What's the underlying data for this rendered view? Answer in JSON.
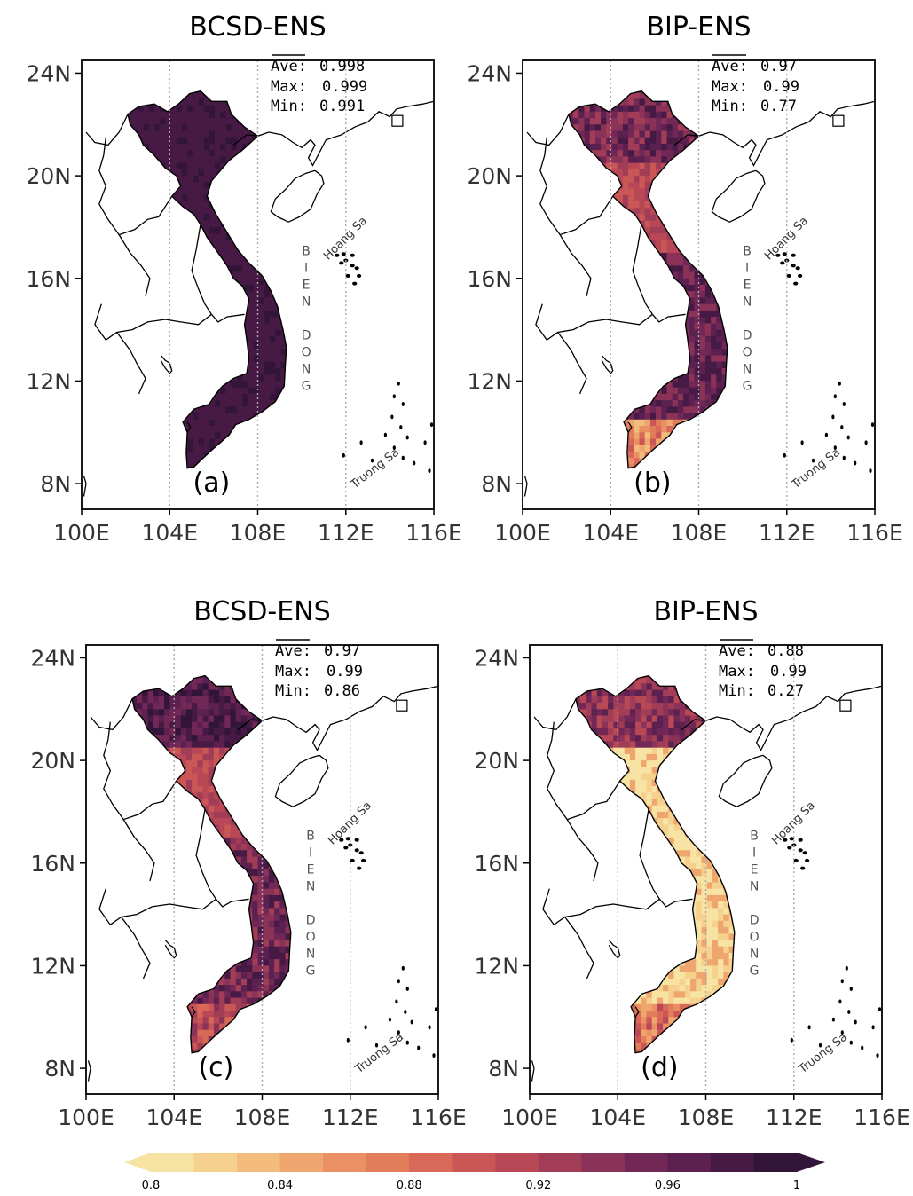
{
  "colors": {
    "scale": [
      "#f7e3a3",
      "#f6d08d",
      "#f3bb7c",
      "#efa66e",
      "#ea9064",
      "#e27d5c",
      "#d86858",
      "#ca5656",
      "#b84856",
      "#a23d57",
      "#8a3257",
      "#722856",
      "#5c2150",
      "#471a45",
      "#321538"
    ],
    "coast": "#000000",
    "land_fill": "#ffffff"
  },
  "panels": [
    {
      "title": "BCSD-ENS",
      "label": "(a)",
      "ave_label": "Ave:",
      "ave": "0.998",
      "max_label": "Max:",
      "max": "0.999",
      "min_label": "Min:",
      "min": "0.991",
      "pattern": "uniform-high"
    },
    {
      "title": "BIP-ENS",
      "label": "(b)",
      "ave_label": "Ave:",
      "ave": "0.97",
      "max_label": "Max:",
      "max": "0.99",
      "min_label": "Min:",
      "min": "0.77",
      "pattern": "mixed-high"
    },
    {
      "title": "BCSD-ENS",
      "label": "(c)",
      "ave_label": "Ave:",
      "ave": "0.97",
      "max_label": "Max:",
      "max": "0.99",
      "min_label": "Min:",
      "min": "0.86",
      "pattern": "mixed-medium"
    },
    {
      "title": "BIP-ENS",
      "label": "(d)",
      "ave_label": "Ave:",
      "ave": "0.88",
      "max_label": "Max:",
      "max": "0.99",
      "min_label": "Min:",
      "min": "0.27",
      "pattern": "mostly-low"
    }
  ],
  "axes": {
    "x_ticks": [
      "100E",
      "104E",
      "108E",
      "112E",
      "116E"
    ],
    "y_ticks": [
      "24N",
      "20N",
      "16N",
      "12N",
      "8N"
    ]
  },
  "places": {
    "sea_name": [
      "B",
      "I",
      "E",
      "N",
      "",
      "D",
      "O",
      "N",
      "G"
    ],
    "paracel": "Hoang Sa",
    "spratly": "Truong Sa"
  },
  "colorbar": {
    "ticks": [
      "0.8",
      "0.84",
      "0.88",
      "0.92",
      "0.96",
      "1"
    ]
  }
}
